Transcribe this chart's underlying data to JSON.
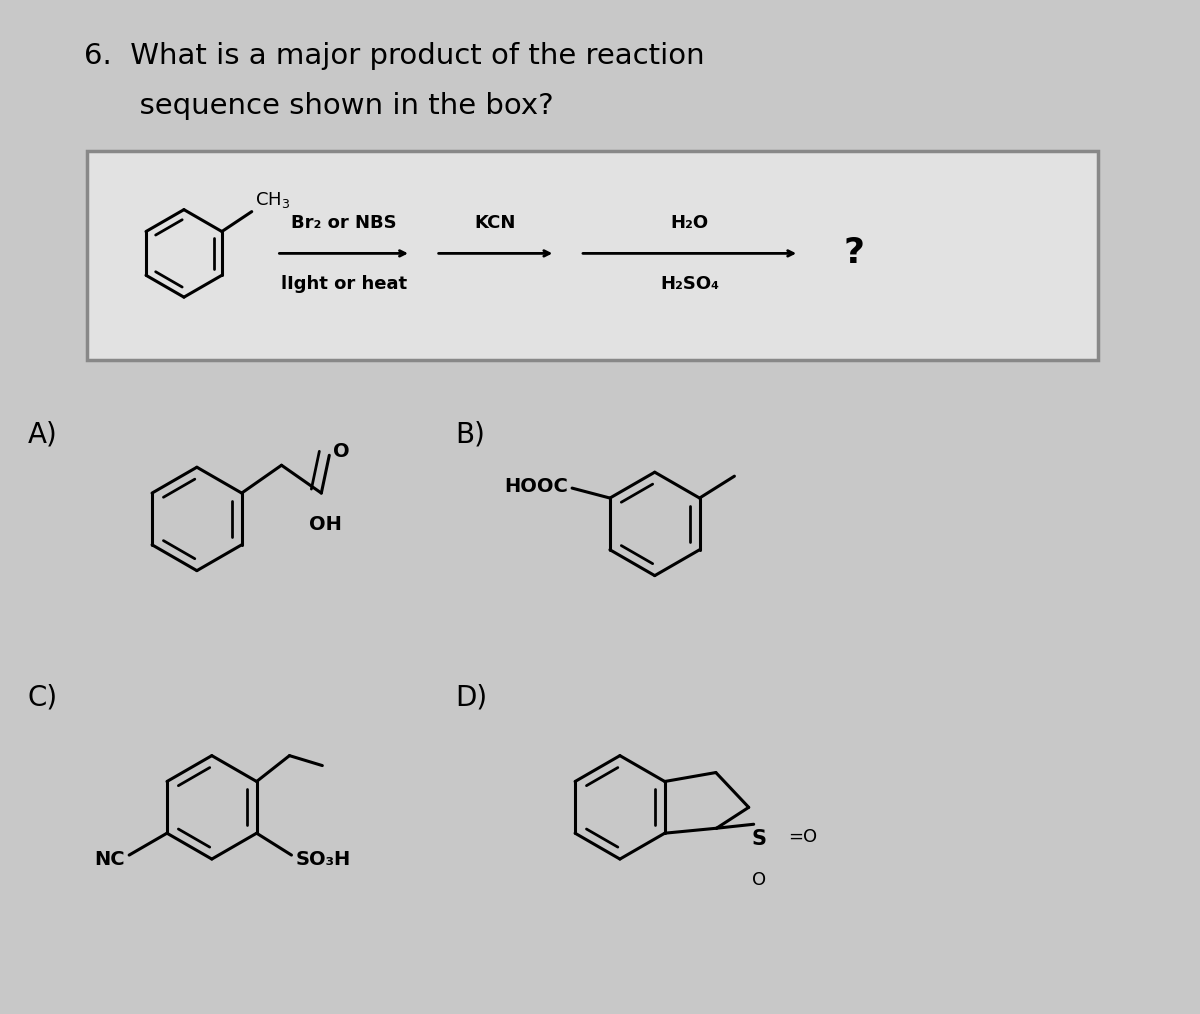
{
  "title_line1": "6.  What is a major product of the reaction",
  "title_line2": "      sequence shown in the box?",
  "bg_color": "#c8c8c8",
  "box_bg": "#e2e2e2",
  "box_edge": "#888888",
  "text_color": "#000000",
  "title_fontsize": 21,
  "label_fontsize": 20,
  "reagent_fontsize": 13,
  "box_reagent1_top": "Br₂ or NBS",
  "box_reagent1_bot": "lIght or heat",
  "box_reagent2": "KCN",
  "box_reagent3_top": "H₂O",
  "box_reagent3_bot": "H₂SO₄",
  "question_mark": "?",
  "option_A": "A)",
  "option_B": "B)",
  "option_C": "C)",
  "option_D": "D)",
  "A_O": "O",
  "A_OH": "OH",
  "B_HOOC": "HOOC",
  "C_NC": "NC",
  "C_SO3H": "SO₃H",
  "D_S": "S",
  "D_eq_O": "=O",
  "D_O": "O"
}
